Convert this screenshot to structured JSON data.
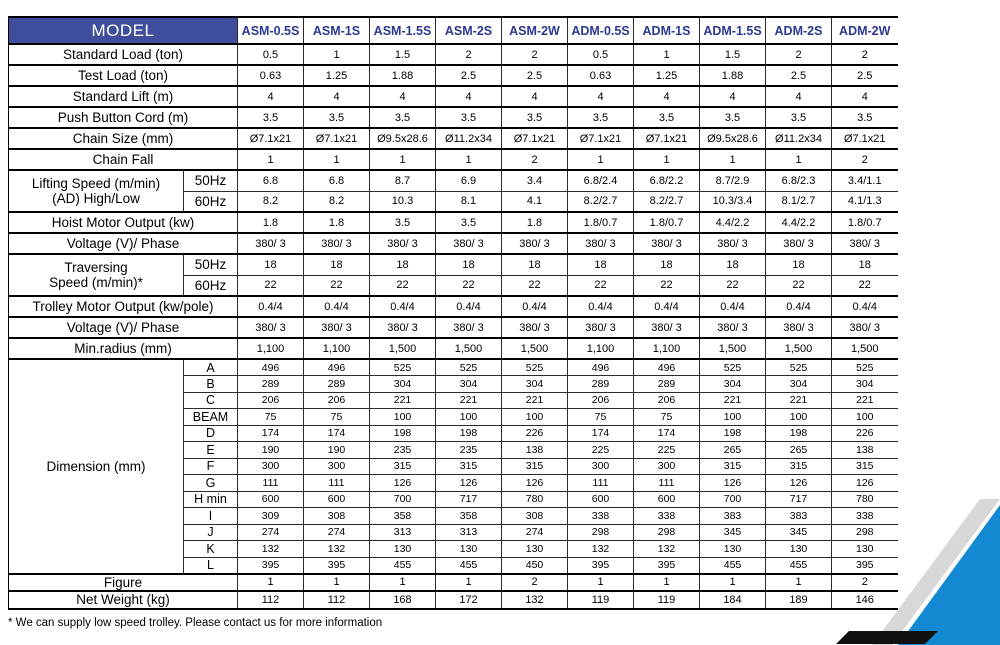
{
  "table": {
    "model_label": "MODEL",
    "columns": [
      "ASM-0.5S",
      "ASM-1S",
      "ASM-1.5S",
      "ASM-2S",
      "ASM-2W",
      "ADM-0.5S",
      "ADM-1S",
      "ADM-1.5S",
      "ADM-2S",
      "ADM-2W"
    ],
    "rows": [
      {
        "label": "Standard Load (ton)",
        "values": [
          "0.5",
          "1",
          "1.5",
          "2",
          "2",
          "0.5",
          "1",
          "1.5",
          "2",
          "2"
        ]
      },
      {
        "label": "Test Load (ton)",
        "values": [
          "0.63",
          "1.25",
          "1.88",
          "2.5",
          "2.5",
          "0.63",
          "1.25",
          "1.88",
          "2.5",
          "2.5"
        ]
      },
      {
        "label": "Standard Lift (m)",
        "values": [
          "4",
          "4",
          "4",
          "4",
          "4",
          "4",
          "4",
          "4",
          "4",
          "4"
        ]
      },
      {
        "label": "Push Button Cord (m)",
        "values": [
          "3.5",
          "3.5",
          "3.5",
          "3.5",
          "3.5",
          "3.5",
          "3.5",
          "3.5",
          "3.5",
          "3.5"
        ]
      },
      {
        "label": "Chain Size (mm)",
        "values": [
          "Ø7.1x21",
          "Ø7.1x21",
          "Ø9.5x28.6",
          "Ø11.2x34",
          "Ø7.1x21",
          "Ø7.1x21",
          "Ø7.1x21",
          "Ø9.5x28.6",
          "Ø11.2x34",
          "Ø7.1x21"
        ]
      },
      {
        "label": "Chain Fall",
        "values": [
          "1",
          "1",
          "1",
          "1",
          "2",
          "1",
          "1",
          "1",
          "1",
          "2"
        ]
      },
      {
        "label": "Lifting Speed (m/min)\n(AD) High/Low",
        "group": [
          {
            "label": "50Hz",
            "values": [
              "6.8",
              "6.8",
              "8.7",
              "6.9",
              "3.4",
              "6.8/2.4",
              "6.8/2.2",
              "8.7/2.9",
              "6.8/2.3",
              "3.4/1.1"
            ]
          },
          {
            "label": "60Hz",
            "values": [
              "8.2",
              "8.2",
              "10.3",
              "8.1",
              "4.1",
              "8.2/2.7",
              "8.2/2.7",
              "10.3/3.4",
              "8.1/2.7",
              "4.1/1.3"
            ]
          }
        ]
      },
      {
        "label": "Hoist Motor Output (kw)",
        "values": [
          "1.8",
          "1.8",
          "3.5",
          "3.5",
          "1.8",
          "1.8/0.7",
          "1.8/0.7",
          "4.4/2.2",
          "4.4/2.2",
          "1.8/0.7"
        ]
      },
      {
        "label": "Voltage (V)/ Phase",
        "values": [
          "380/ 3",
          "380/ 3",
          "380/ 3",
          "380/ 3",
          "380/ 3",
          "380/ 3",
          "380/ 3",
          "380/ 3",
          "380/ 3",
          "380/ 3"
        ]
      },
      {
        "label": "Traversing\nSpeed (m/min)*",
        "group": [
          {
            "label": "50Hz",
            "values": [
              "18",
              "18",
              "18",
              "18",
              "18",
              "18",
              "18",
              "18",
              "18",
              "18"
            ]
          },
          {
            "label": "60Hz",
            "values": [
              "22",
              "22",
              "22",
              "22",
              "22",
              "22",
              "22",
              "22",
              "22",
              "22"
            ]
          }
        ]
      },
      {
        "label": "Trolley Motor Output (kw/pole)",
        "values": [
          "0.4/4",
          "0.4/4",
          "0.4/4",
          "0.4/4",
          "0.4/4",
          "0.4/4",
          "0.4/4",
          "0.4/4",
          "0.4/4",
          "0.4/4"
        ]
      },
      {
        "label": "Voltage (V)/ Phase",
        "values": [
          "380/ 3",
          "380/ 3",
          "380/ 3",
          "380/ 3",
          "380/ 3",
          "380/ 3",
          "380/ 3",
          "380/ 3",
          "380/ 3",
          "380/ 3"
        ]
      },
      {
        "label": "Min.radius (mm)",
        "values": [
          "1,100",
          "1,100",
          "1,500",
          "1,500",
          "1,500",
          "1,100",
          "1,100",
          "1,500",
          "1,500",
          "1,500"
        ]
      },
      {
        "label": "Dimension (mm)",
        "dim": true,
        "group": [
          {
            "label": "A",
            "values": [
              "496",
              "496",
              "525",
              "525",
              "525",
              "496",
              "496",
              "525",
              "525",
              "525"
            ]
          },
          {
            "label": "B",
            "values": [
              "289",
              "289",
              "304",
              "304",
              "304",
              "289",
              "289",
              "304",
              "304",
              "304"
            ]
          },
          {
            "label": "C",
            "values": [
              "206",
              "206",
              "221",
              "221",
              "221",
              "206",
              "206",
              "221",
              "221",
              "221"
            ]
          },
          {
            "label": "BEAM",
            "values": [
              "75",
              "75",
              "100",
              "100",
              "100",
              "75",
              "75",
              "100",
              "100",
              "100"
            ]
          },
          {
            "label": "D",
            "values": [
              "174",
              "174",
              "198",
              "198",
              "226",
              "174",
              "174",
              "198",
              "198",
              "226"
            ]
          },
          {
            "label": "E",
            "values": [
              "190",
              "190",
              "235",
              "235",
              "138",
              "225",
              "225",
              "265",
              "265",
              "138"
            ]
          },
          {
            "label": "F",
            "values": [
              "300",
              "300",
              "315",
              "315",
              "315",
              "300",
              "300",
              "315",
              "315",
              "315"
            ]
          },
          {
            "label": "G",
            "values": [
              "111",
              "111",
              "126",
              "126",
              "126",
              "111",
              "111",
              "126",
              "126",
              "126"
            ]
          },
          {
            "label": "H min",
            "values": [
              "600",
              "600",
              "700",
              "717",
              "780",
              "600",
              "600",
              "700",
              "717",
              "780"
            ]
          },
          {
            "label": "I",
            "values": [
              "309",
              "308",
              "358",
              "358",
              "308",
              "338",
              "338",
              "383",
              "383",
              "338"
            ]
          },
          {
            "label": "J",
            "values": [
              "274",
              "274",
              "313",
              "313",
              "274",
              "298",
              "298",
              "345",
              "345",
              "298"
            ]
          },
          {
            "label": "K",
            "values": [
              "132",
              "132",
              "130",
              "130",
              "130",
              "132",
              "132",
              "130",
              "130",
              "130"
            ]
          },
          {
            "label": "L",
            "values": [
              "395",
              "395",
              "455",
              "455",
              "450",
              "395",
              "395",
              "455",
              "455",
              "395"
            ]
          }
        ]
      },
      {
        "label": "Figure",
        "small": true,
        "values": [
          "1",
          "1",
          "1",
          "1",
          "2",
          "1",
          "1",
          "1",
          "1",
          "2"
        ]
      },
      {
        "label": "Net Weight (kg)",
        "small": true,
        "values": [
          "112",
          "112",
          "168",
          "172",
          "132",
          "119",
          "119",
          "184",
          "189",
          "146"
        ]
      }
    ]
  },
  "footnote": "* We can supply low speed trolley. Please contact us for more information",
  "colors": {
    "header_bg": "#3F4E9C",
    "header_text": "#FFFFFF",
    "column_header_text": "#2B3990",
    "accent_blue": "#1289D2",
    "stripe_gray": "#D8D8D8",
    "bar_black": "#111111"
  }
}
